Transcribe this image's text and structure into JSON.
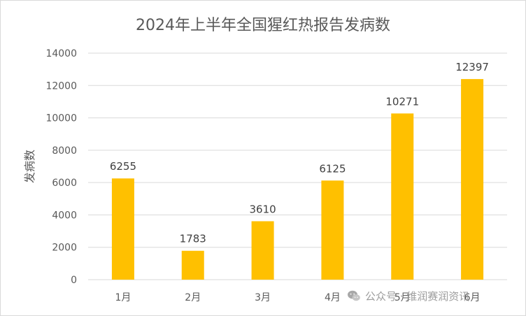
{
  "chart_data": {
    "type": "bar",
    "title": "2024年上半年全国猩红热报告发病数",
    "xlabel": "",
    "ylabel": "发病数",
    "categories": [
      "1月",
      "2月",
      "3月",
      "4月",
      "5月",
      "6月"
    ],
    "values": [
      6255,
      1783,
      3610,
      6125,
      10271,
      12397
    ],
    "ylim": [
      0,
      14000
    ],
    "yticks": [
      0,
      2000,
      4000,
      6000,
      8000,
      10000,
      12000,
      14000
    ],
    "grid": true,
    "legend": "none",
    "bar_color": "#FFC000",
    "grid_color": "#d9d9d9"
  },
  "watermark": {
    "text": "公众号 · 维润赛润资讯",
    "icon": "wechat-icon"
  }
}
